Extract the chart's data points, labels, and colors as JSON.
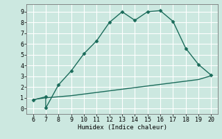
{
  "xlabel": "Humidex (Indice chaleur)",
  "xlim": [
    5.5,
    20.5
  ],
  "ylim": [
    -0.5,
    9.7
  ],
  "xticks": [
    6,
    7,
    8,
    9,
    10,
    11,
    12,
    13,
    14,
    15,
    16,
    17,
    18,
    19,
    20
  ],
  "yticks": [
    0,
    1,
    2,
    3,
    4,
    5,
    6,
    7,
    8,
    9
  ],
  "bg_color": "#cce8e0",
  "grid_color": "#ffffff",
  "line_color": "#1a6b5a",
  "line1_x": [
    6,
    7,
    7,
    8,
    9,
    10,
    11,
    12,
    13,
    14,
    15,
    16,
    17,
    18,
    19,
    20
  ],
  "line1_y": [
    0.8,
    1.1,
    0.05,
    2.2,
    3.5,
    5.1,
    6.3,
    8.0,
    9.0,
    8.2,
    9.0,
    9.1,
    8.1,
    5.6,
    4.1,
    3.1
  ],
  "line2_x": [
    6,
    7,
    8,
    9,
    10,
    11,
    12,
    13,
    14,
    15,
    16,
    17,
    18,
    19,
    20
  ],
  "line2_y": [
    0.85,
    1.0,
    1.1,
    1.2,
    1.35,
    1.5,
    1.65,
    1.8,
    1.95,
    2.1,
    2.25,
    2.4,
    2.55,
    2.7,
    3.05
  ],
  "marker": "D",
  "marker_size": 2.5,
  "linewidth": 1.0
}
